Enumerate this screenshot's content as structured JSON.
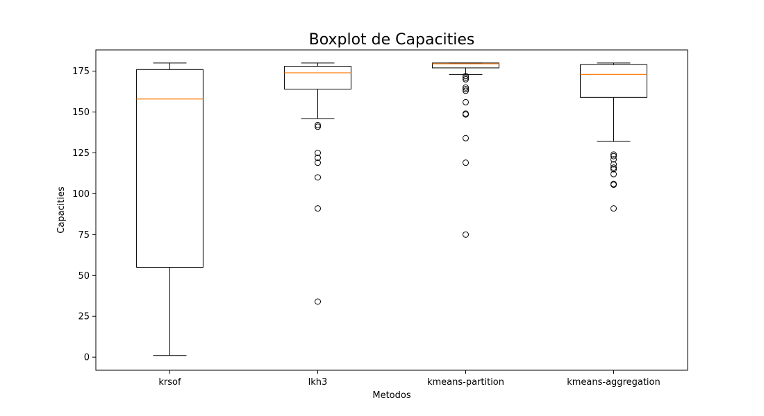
{
  "chart_data": {
    "type": "boxplot",
    "title": "Boxplot de Capacities",
    "xlabel": "Metodos",
    "ylabel": "Capacities",
    "ylim": [
      -8,
      188
    ],
    "yticks": [
      0,
      25,
      50,
      75,
      100,
      125,
      150,
      175
    ],
    "grid": false,
    "categories": [
      "krsof",
      "lkh3",
      "kmeans-partition",
      "kmeans-aggregation"
    ],
    "boxes": [
      {
        "name": "krsof",
        "whisker_low": 1,
        "q1": 55,
        "median": 158,
        "q3": 176,
        "whisker_high": 180,
        "outliers": []
      },
      {
        "name": "lkh3",
        "whisker_low": 146,
        "q1": 164,
        "median": 174,
        "q3": 178,
        "whisker_high": 180,
        "outliers": [
          142,
          141,
          125,
          122,
          119,
          110,
          91,
          34
        ]
      },
      {
        "name": "kmeans-partition",
        "whisker_low": 173,
        "q1": 177,
        "median": 179.5,
        "q3": 180,
        "whisker_high": 180,
        "outliers": [
          172,
          171,
          170,
          165,
          164,
          163,
          156,
          149,
          148.5,
          134,
          119,
          75
        ]
      },
      {
        "name": "kmeans-aggregation",
        "whisker_low": 132,
        "q1": 159,
        "median": 173,
        "q3": 179,
        "whisker_high": 180,
        "outliers": [
          124,
          123,
          121,
          118,
          116,
          115,
          112,
          106,
          105.5,
          91
        ]
      }
    ],
    "colors": {
      "box": "#000000",
      "median": "#ff7f0e",
      "outlier": "#000000"
    }
  }
}
